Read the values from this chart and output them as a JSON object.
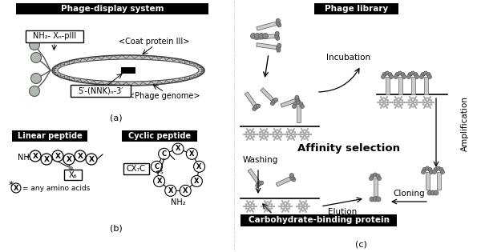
{
  "white": "#ffffff",
  "black": "#000000",
  "gray": "#888888",
  "light_gray": "#cccccc",
  "med_gray": "#aaaaaa",
  "dark_gray": "#555555",
  "phage_display_title": "Phage-display system",
  "phage_library_title": "Phage library",
  "linear_peptide_title": "Linear peptide",
  "cyclic_peptide_title": "Cyclic peptide",
  "carbohydrate_title": "Carbohydrate-binding protein",
  "affinity_title": "Affinity selection",
  "label_a": "(a)",
  "label_b": "(b)",
  "label_c": "(c)",
  "coat_protein_label": "<Coat protein III>",
  "phage_genome_label": "<Phage genome>",
  "nh2_xn_piii": "NH₂- Xₙ-pIII",
  "nnk_label": "5′-(NNK)ₙ-3′",
  "x6_label": "X₆",
  "cx7c_label": "CX₇C",
  "incubation_label": "Incubation",
  "washing_label": "Washing",
  "elution_label": "Elution",
  "amplification_label": "Amplification",
  "cloning_label": "Cloning"
}
